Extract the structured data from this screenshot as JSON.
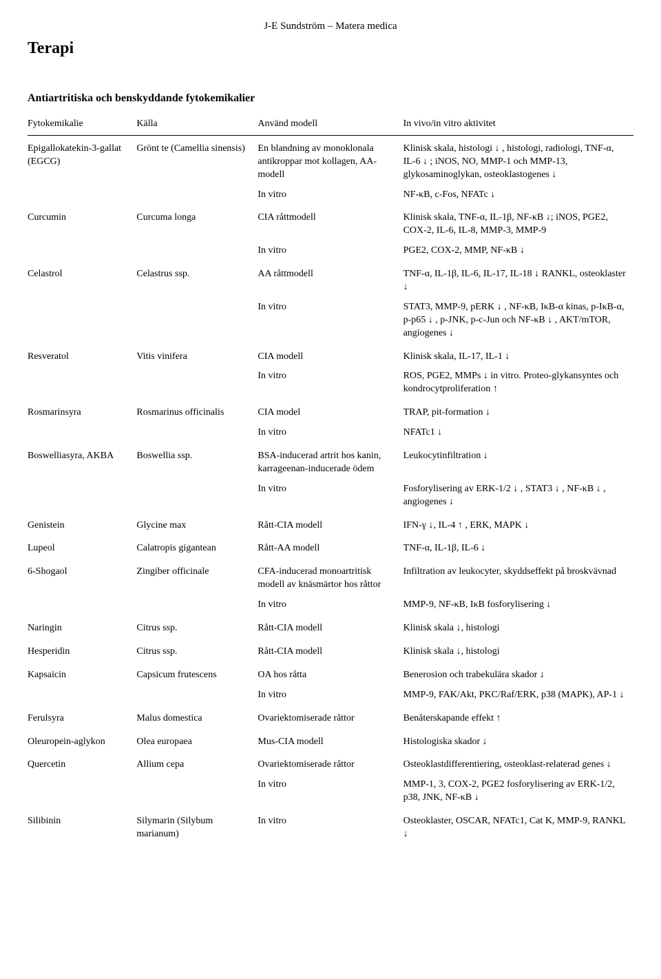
{
  "header": "J-E Sundström – Matera medica",
  "section": "Terapi",
  "table_title": "Antiartritiska och benskyddande fytokemikalier",
  "columns": [
    "Fytokemikalie",
    "Källa",
    "Använd modell",
    "In vivo/in vitro aktivitet"
  ],
  "rows": [
    {
      "phyto": "Epigallokatekin-3-gallat (EGCG)",
      "source": "Grönt te (Camellia sinensis)",
      "model": "En blandning av monoklonala antikroppar mot  kollagen, AA-modell",
      "activity": "Klinisk skala, histologi ↓ , histologi, radiologi, TNF-α, IL-6 ↓ ; iNOS, NO, MMP-1 och MMP-13, glykosaminoglykan, osteoklastogenes ↓"
    },
    {
      "phyto": "",
      "source": "",
      "model": "In vitro",
      "activity": "NF-κB, c-Fos, NFATc ↓"
    },
    {
      "phyto": "Curcumin",
      "source": "Curcuma longa",
      "model": "CIA råttmodell",
      "activity": "Klinisk skala, TNF-α, IL-1β, NF-κB ↓; iNOS, PGE2, COX-2, IL-6, IL-8, MMP-3, MMP-9"
    },
    {
      "phyto": "",
      "source": "",
      "model": "In vitro",
      "activity": "PGE2, COX-2, MMP, NF-κB ↓"
    },
    {
      "phyto": "Celastrol",
      "source": "Celastrus ssp.",
      "model": "AA råttmodell",
      "activity": "TNF-α, IL-1β, IL-6, IL-17, IL-18 ↓ RANKL, osteoklaster ↓"
    },
    {
      "phyto": "",
      "source": "",
      "model": "In vitro",
      "activity": "STAT3, MMP-9, pERK ↓ , NF-κB, IκB-α kinas, p-IκB-α, p-p65 ↓ , p-JNK, p-c-Jun och NF-κB ↓ , AKT/mTOR, angiogenes ↓"
    },
    {
      "phyto": "Resveratol",
      "source": "Vitis vinifera",
      "model": "CIA modell",
      "activity": "Klinisk skala, IL-17, IL-1 ↓"
    },
    {
      "phyto": "",
      "source": "",
      "model": "In vitro",
      "activity": "ROS, PGE2, MMPs ↓ in vitro. Proteo-glykansyntes och kondrocytproliferation ↑"
    },
    {
      "phyto": "Rosmarinsyra",
      "source": "Rosmarinus officinalis",
      "model": "CIA model",
      "activity": "TRAP, pit-formation ↓"
    },
    {
      "phyto": "",
      "source": "",
      "model": "In vitro",
      "activity": "NFATc1 ↓"
    },
    {
      "phyto": "Boswelliasyra, AKBA",
      "source": "Boswellia ssp.",
      "model": "BSA-inducerad artrit hos kanin, karrageenan-inducerade ödem",
      "activity": "Leukocytinfiltration ↓"
    },
    {
      "phyto": "",
      "source": "",
      "model": "In vitro",
      "activity": "Fosforylisering av ERK-1/2 ↓ , STAT3 ↓ , NF-κB ↓ , angiogenes ↓"
    },
    {
      "phyto": "Genistein",
      "source": "Glycine max",
      "model": "Rått-CIA modell",
      "activity": "IFN-γ ↓, IL-4 ↑ , ERK, MAPK ↓"
    },
    {
      "phyto": "Lupeol",
      "source": "Calatropis gigantean",
      "model": "Rått-AA modell",
      "activity": "TNF-α, IL-1β, IL-6 ↓"
    },
    {
      "phyto": "6-Shogaol",
      "source": "Zingiber officinale",
      "model": "CFA-inducerad monoartritisk modell av knäsmärtor hos råttor",
      "activity": "Infiltration av leukocyter, skyddseffekt på broskvävnad"
    },
    {
      "phyto": "",
      "source": "",
      "model": "In vitro",
      "activity": "MMP-9, NF-κB, IκB fosforylisering ↓"
    },
    {
      "phyto": "Naringin",
      "source": "Citrus ssp.",
      "model": "Rått-CIA modell",
      "activity": "Klinisk skala ↓, histologi"
    },
    {
      "phyto": "Hesperidin",
      "source": "Citrus ssp.",
      "model": "Rått-CIA modell",
      "activity": "Klinisk skala ↓, histologi"
    },
    {
      "phyto": "Kapsaicin",
      "source": "Capsicum frutescens",
      "model": "OA hos råtta",
      "activity": "Benerosion och trabekulära skador ↓"
    },
    {
      "phyto": "",
      "source": "",
      "model": "In vitro",
      "activity": "MMP-9, FAK/Akt, PKC/Raf/ERK, p38 (MAPK), AP-1 ↓"
    },
    {
      "phyto": "Ferulsyra",
      "source": "Malus domestica",
      "model": "Ovariektomiserade råttor",
      "activity": "Benåterskapande effekt ↑"
    },
    {
      "phyto": "Oleuropein-aglykon",
      "source": "Olea europaea",
      "model": "Mus-CIA modell",
      "activity": "Histologiska skador ↓"
    },
    {
      "phyto": "Quercetin",
      "source": "Allium cepa",
      "model": "Ovariektomiserade råttor",
      "activity": "Osteoklastdifferentiering, osteoklast-relaterad genes ↓"
    },
    {
      "phyto": "",
      "source": "",
      "model": "In vitro",
      "activity": "MMP-1, 3, COX-2, PGE2 fosforylisering av ERK-1/2, p38, JNK, NF-κB ↓"
    },
    {
      "phyto": "Silibinin",
      "source": "Silymarin (Silybum marianum)",
      "model": "In vitro",
      "activity": "Osteoklaster, OSCAR, NFATc1, Cat K, MMP-9, RANKL ↓"
    }
  ]
}
